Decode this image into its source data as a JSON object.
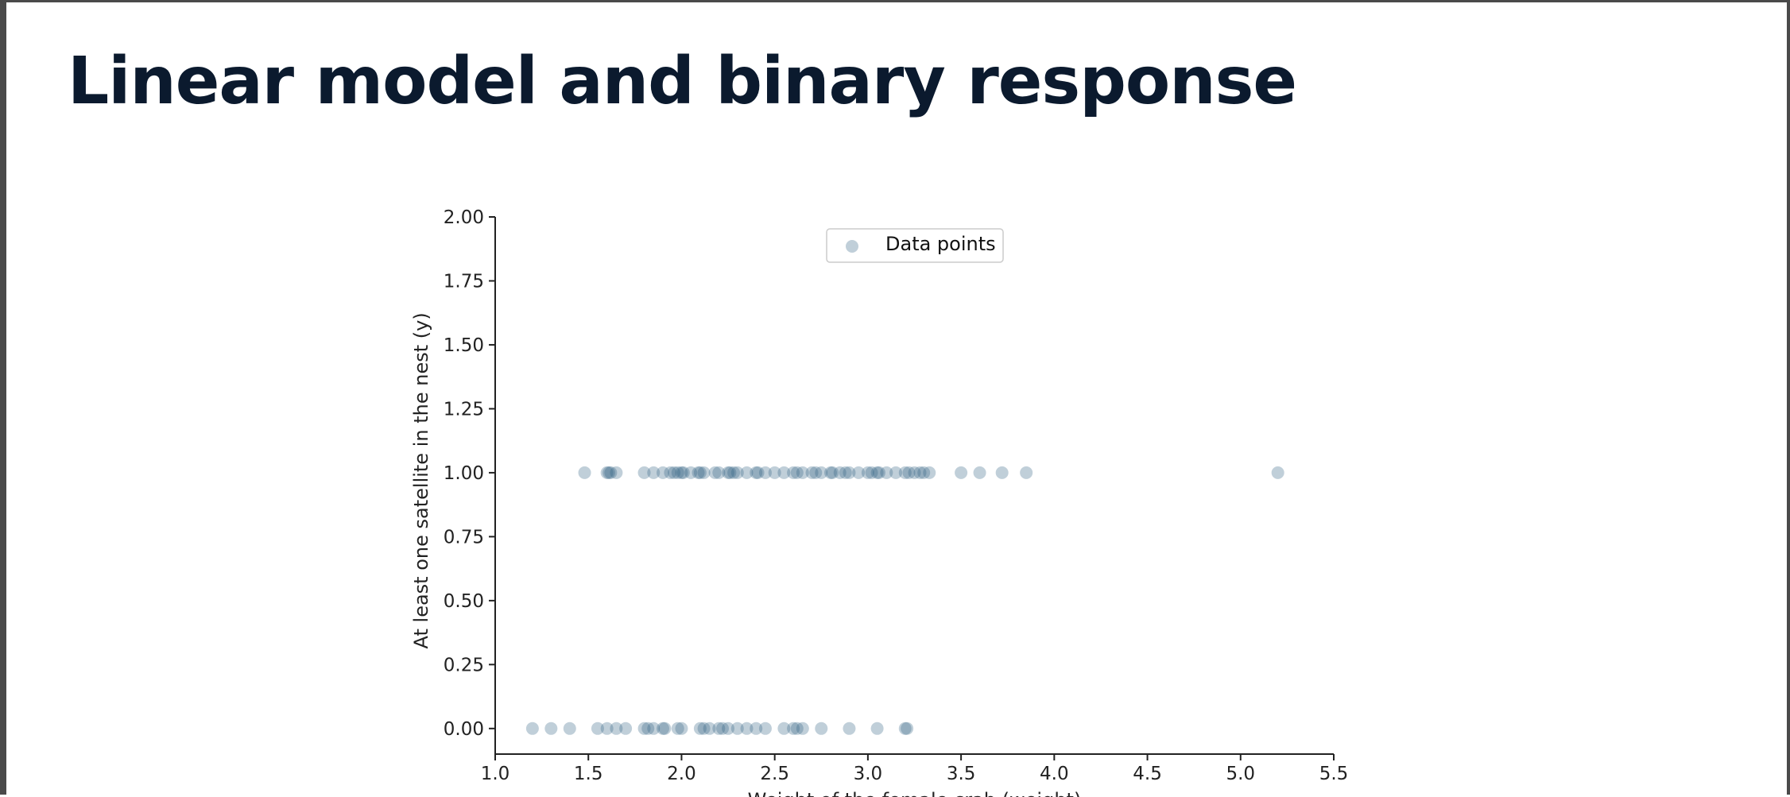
{
  "page": {
    "title": "Linear model and binary response"
  },
  "colors": {
    "point": "#2e5f80",
    "axis": "#222222",
    "title": "#0b1a2e"
  },
  "chart_data": {
    "type": "scatter",
    "xlabel": "Weight of the female crab (weight)",
    "ylabel": "At least one satellite in the nest (y)",
    "xlim": [
      1.0,
      5.5
    ],
    "ylim": [
      -0.1,
      2.0
    ],
    "x_ticks": [
      "1.0",
      "1.5",
      "2.0",
      "2.5",
      "3.0",
      "3.5",
      "4.0",
      "4.5",
      "5.0",
      "5.5"
    ],
    "y_ticks": [
      "0.00",
      "0.25",
      "0.50",
      "0.75",
      "1.00",
      "1.25",
      "1.50",
      "1.75",
      "2.00"
    ],
    "grid": false,
    "legend": {
      "position": "top-center",
      "entries": [
        "Data points"
      ]
    },
    "point_alpha": 0.3,
    "series": [
      {
        "name": "Data points",
        "points": [
          {
            "x": 1.48,
            "y": 1
          },
          {
            "x": 1.6,
            "y": 1
          },
          {
            "x": 1.61,
            "y": 1
          },
          {
            "x": 1.62,
            "y": 1
          },
          {
            "x": 1.65,
            "y": 1
          },
          {
            "x": 1.8,
            "y": 1
          },
          {
            "x": 1.85,
            "y": 1
          },
          {
            "x": 1.9,
            "y": 1
          },
          {
            "x": 1.94,
            "y": 1
          },
          {
            "x": 1.96,
            "y": 1
          },
          {
            "x": 1.98,
            "y": 1
          },
          {
            "x": 2.0,
            "y": 1
          },
          {
            "x": 2.01,
            "y": 1
          },
          {
            "x": 2.05,
            "y": 1
          },
          {
            "x": 2.09,
            "y": 1
          },
          {
            "x": 2.1,
            "y": 1
          },
          {
            "x": 2.12,
            "y": 1
          },
          {
            "x": 2.18,
            "y": 1
          },
          {
            "x": 2.2,
            "y": 1
          },
          {
            "x": 2.25,
            "y": 1
          },
          {
            "x": 2.26,
            "y": 1
          },
          {
            "x": 2.28,
            "y": 1
          },
          {
            "x": 2.3,
            "y": 1
          },
          {
            "x": 2.35,
            "y": 1
          },
          {
            "x": 2.4,
            "y": 1
          },
          {
            "x": 2.41,
            "y": 1
          },
          {
            "x": 2.45,
            "y": 1
          },
          {
            "x": 2.5,
            "y": 1
          },
          {
            "x": 2.55,
            "y": 1
          },
          {
            "x": 2.6,
            "y": 1
          },
          {
            "x": 2.62,
            "y": 1
          },
          {
            "x": 2.65,
            "y": 1
          },
          {
            "x": 2.7,
            "y": 1
          },
          {
            "x": 2.72,
            "y": 1
          },
          {
            "x": 2.75,
            "y": 1
          },
          {
            "x": 2.8,
            "y": 1
          },
          {
            "x": 2.81,
            "y": 1
          },
          {
            "x": 2.85,
            "y": 1
          },
          {
            "x": 2.88,
            "y": 1
          },
          {
            "x": 2.9,
            "y": 1
          },
          {
            "x": 2.95,
            "y": 1
          },
          {
            "x": 3.0,
            "y": 1
          },
          {
            "x": 3.02,
            "y": 1
          },
          {
            "x": 3.05,
            "y": 1
          },
          {
            "x": 3.06,
            "y": 1
          },
          {
            "x": 3.1,
            "y": 1
          },
          {
            "x": 3.15,
            "y": 1
          },
          {
            "x": 3.2,
            "y": 1
          },
          {
            "x": 3.22,
            "y": 1
          },
          {
            "x": 3.25,
            "y": 1
          },
          {
            "x": 3.28,
            "y": 1
          },
          {
            "x": 3.3,
            "y": 1
          },
          {
            "x": 3.33,
            "y": 1
          },
          {
            "x": 3.5,
            "y": 1
          },
          {
            "x": 3.6,
            "y": 1
          },
          {
            "x": 3.72,
            "y": 1
          },
          {
            "x": 3.85,
            "y": 1
          },
          {
            "x": 5.2,
            "y": 1
          },
          {
            "x": 1.2,
            "y": 0
          },
          {
            "x": 1.3,
            "y": 0
          },
          {
            "x": 1.4,
            "y": 0
          },
          {
            "x": 1.55,
            "y": 0
          },
          {
            "x": 1.6,
            "y": 0
          },
          {
            "x": 1.65,
            "y": 0
          },
          {
            "x": 1.7,
            "y": 0
          },
          {
            "x": 1.8,
            "y": 0
          },
          {
            "x": 1.82,
            "y": 0
          },
          {
            "x": 1.85,
            "y": 0
          },
          {
            "x": 1.9,
            "y": 0
          },
          {
            "x": 1.91,
            "y": 0
          },
          {
            "x": 1.98,
            "y": 0
          },
          {
            "x": 2.0,
            "y": 0
          },
          {
            "x": 2.1,
            "y": 0
          },
          {
            "x": 2.12,
            "y": 0
          },
          {
            "x": 2.15,
            "y": 0
          },
          {
            "x": 2.2,
            "y": 0
          },
          {
            "x": 2.22,
            "y": 0
          },
          {
            "x": 2.25,
            "y": 0
          },
          {
            "x": 2.3,
            "y": 0
          },
          {
            "x": 2.35,
            "y": 0
          },
          {
            "x": 2.4,
            "y": 0
          },
          {
            "x": 2.45,
            "y": 0
          },
          {
            "x": 2.55,
            "y": 0
          },
          {
            "x": 2.6,
            "y": 0
          },
          {
            "x": 2.62,
            "y": 0
          },
          {
            "x": 2.65,
            "y": 0
          },
          {
            "x": 2.75,
            "y": 0
          },
          {
            "x": 2.9,
            "y": 0
          },
          {
            "x": 3.05,
            "y": 0
          },
          {
            "x": 3.2,
            "y": 0
          },
          {
            "x": 3.21,
            "y": 0
          }
        ]
      }
    ]
  }
}
